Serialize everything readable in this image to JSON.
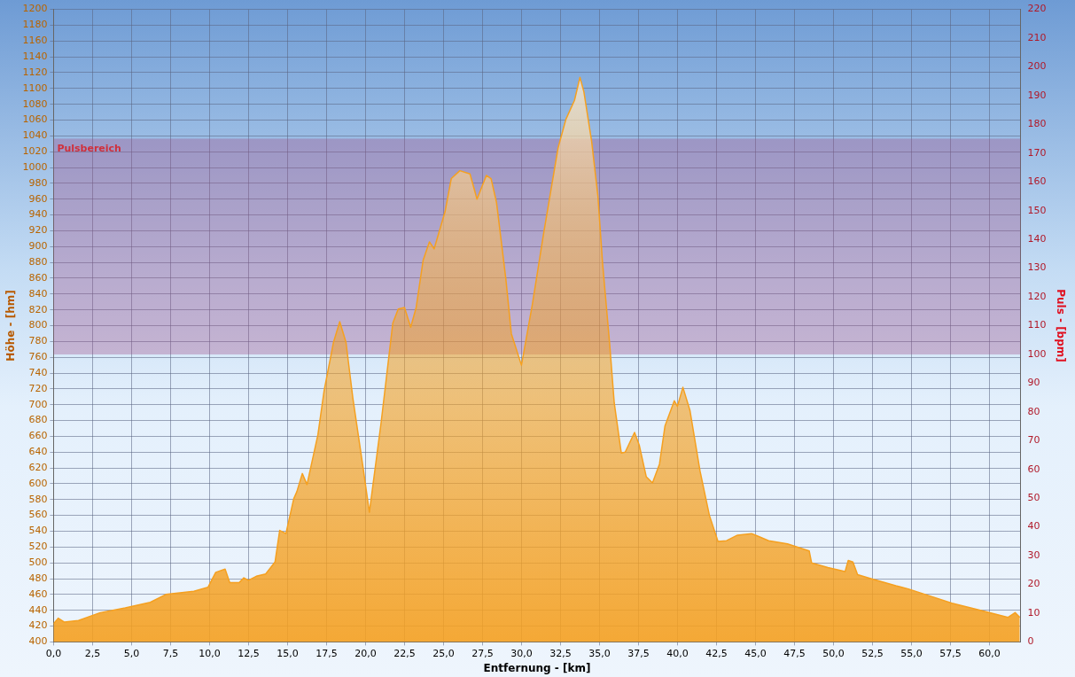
{
  "chart_data": {
    "type": "area",
    "xlabel": "Entfernung - [km]",
    "ylabel": "Höhe - [hm]",
    "y2label": "Puls - [bpm]",
    "xlim": [
      0,
      62
    ],
    "xticks": [
      {
        "value": 0,
        "label": "0,0"
      },
      {
        "value": 2.5,
        "label": "2,5"
      },
      {
        "value": 5,
        "label": "5,0"
      },
      {
        "value": 7.5,
        "label": "7,5"
      },
      {
        "value": 10,
        "label": "10,0"
      },
      {
        "value": 12.5,
        "label": "12,5"
      },
      {
        "value": 15,
        "label": "15,0"
      },
      {
        "value": 17.5,
        "label": "17,5"
      },
      {
        "value": 20,
        "label": "20,0"
      },
      {
        "value": 22.5,
        "label": "22,5"
      },
      {
        "value": 25,
        "label": "25,0"
      },
      {
        "value": 27.5,
        "label": "27,5"
      },
      {
        "value": 30,
        "label": "30,0"
      },
      {
        "value": 32.5,
        "label": "32,5"
      },
      {
        "value": 35,
        "label": "35,0"
      },
      {
        "value": 37.5,
        "label": "37,5"
      },
      {
        "value": 40,
        "label": "40,0"
      },
      {
        "value": 42.5,
        "label": "42,5"
      },
      {
        "value": 45,
        "label": "45,0"
      },
      {
        "value": 47.5,
        "label": "47,5"
      },
      {
        "value": 50,
        "label": "50,0"
      },
      {
        "value": 52.5,
        "label": "52,5"
      },
      {
        "value": 55,
        "label": "55,0"
      },
      {
        "value": 57.5,
        "label": "57,5"
      },
      {
        "value": 60,
        "label": "60,0"
      }
    ],
    "ylim": [
      400,
      1200
    ],
    "yticks": [
      400,
      420,
      440,
      460,
      480,
      500,
      520,
      540,
      560,
      580,
      600,
      620,
      640,
      660,
      680,
      700,
      720,
      740,
      760,
      780,
      800,
      820,
      840,
      860,
      880,
      900,
      920,
      940,
      960,
      980,
      1000,
      1020,
      1040,
      1060,
      1080,
      1100,
      1120,
      1140,
      1160,
      1180,
      1200
    ],
    "y2lim": [
      0,
      220
    ],
    "y2ticks": [
      0,
      10,
      20,
      30,
      40,
      50,
      60,
      70,
      80,
      90,
      100,
      110,
      120,
      130,
      140,
      150,
      160,
      170,
      180,
      190,
      200,
      210,
      220
    ],
    "grid": true,
    "bands": [
      {
        "axis": "y2",
        "from": 100,
        "to": 175,
        "label": "Pulsbereich",
        "color": "#a0508a"
      }
    ],
    "series": [
      {
        "color": "#f5a020",
        "x": [
          0,
          0.3,
          0.7,
          1.6,
          3.0,
          4.6,
          6.2,
          7.2,
          9.0,
          9.9,
          10.4,
          11.0,
          11.3,
          11.9,
          12.2,
          12.5,
          13.0,
          13.6,
          14.2,
          14.5,
          14.9,
          15.4,
          15.6,
          15.95,
          16.25,
          16.95,
          17.35,
          17.95,
          18.35,
          18.75,
          19.2,
          19.85,
          20.25,
          21.0,
          21.75,
          22.1,
          22.5,
          22.9,
          23.25,
          23.7,
          24.1,
          24.4,
          25.1,
          25.5,
          26.05,
          26.7,
          27.15,
          27.75,
          28.05,
          28.4,
          29.0,
          29.35,
          30.0,
          30.7,
          31.45,
          32.35,
          32.85,
          33.4,
          33.75,
          34.0,
          34.5,
          34.9,
          35.2,
          35.65,
          35.95,
          36.4,
          36.65,
          37.25,
          37.55,
          38.0,
          38.4,
          38.85,
          39.2,
          39.8,
          40.0,
          40.35,
          40.8,
          41.45,
          42.05,
          42.6,
          43.15,
          43.85,
          44.75,
          45.25,
          45.85,
          47.05,
          48.45,
          48.6,
          49.65,
          50.75,
          50.95,
          51.25,
          51.55,
          52.4,
          54.0,
          54.8,
          56.2,
          57.6,
          59.2,
          61.2,
          61.65,
          61.95
        ],
        "values": [
          423,
          430,
          425,
          427,
          437,
          443,
          450,
          460,
          464,
          469,
          488,
          492,
          475,
          475,
          481,
          478,
          483,
          486,
          501,
          541,
          537,
          581,
          590,
          613,
          599,
          662,
          718,
          779,
          805,
          779,
          707,
          620,
          564,
          677,
          803,
          821,
          823,
          798,
          823,
          883,
          906,
          897,
          944,
          986,
          996,
          992,
          960,
          990,
          986,
          956,
          859,
          790,
          750,
          827,
          920,
          1025,
          1061,
          1085,
          1114,
          1096,
          1033,
          964,
          879,
          778,
          702,
          639,
          640,
          665,
          649,
          609,
          601,
          625,
          673,
          705,
          698,
          722,
          693,
          616,
          560,
          527,
          528,
          535,
          537,
          533,
          528,
          524,
          515,
          500,
          494,
          489,
          503,
          501,
          485,
          480,
          471,
          467,
          458,
          449,
          441,
          431,
          437,
          431
        ]
      }
    ]
  }
}
